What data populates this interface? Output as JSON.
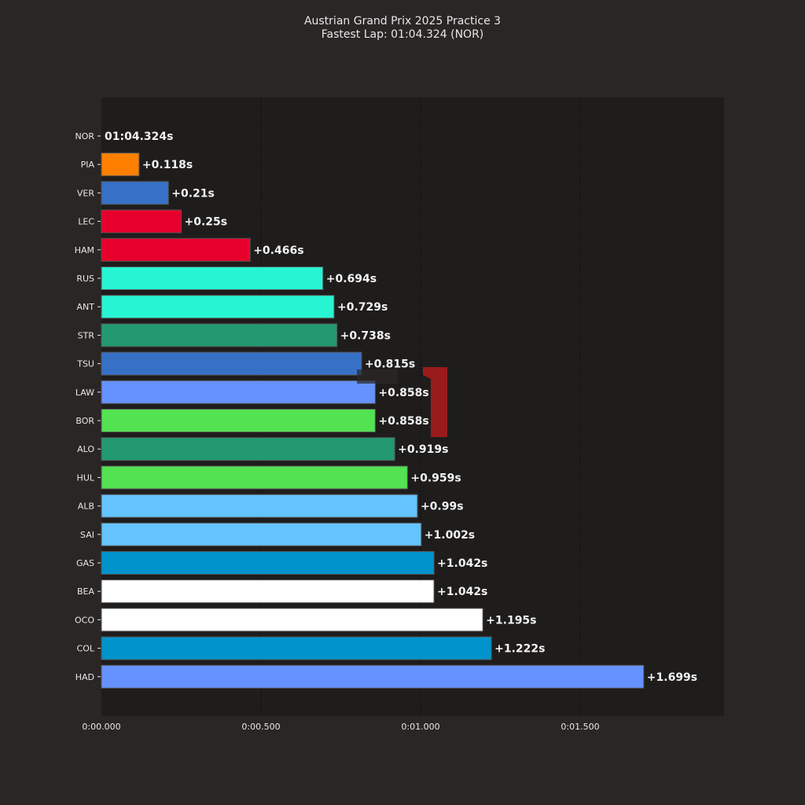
{
  "chart_data": {
    "type": "bar",
    "orientation": "horizontal",
    "title": "Austrian Grand Prix 2025 Practice 3",
    "subtitle": "Fastest Lap: 01:04.324 (NOR)",
    "xlabel": "",
    "ylabel": "",
    "xlim": [
      0,
      1.95
    ],
    "x_ticks": [
      {
        "value": 0,
        "label": "0:00.000"
      },
      {
        "value": 0.5,
        "label": "0:00.500"
      },
      {
        "value": 1.0,
        "label": "0:01.000"
      },
      {
        "value": 1.5,
        "label": "0:01.500"
      }
    ],
    "grid": true,
    "legend": "none",
    "background": "#292625",
    "plot_background": "#1f1d1c",
    "categories": [
      "NOR",
      "PIA",
      "VER",
      "LEC",
      "HAM",
      "RUS",
      "ANT",
      "STR",
      "TSU",
      "LAW",
      "BOR",
      "ALO",
      "HUL",
      "ALB",
      "SAI",
      "GAS",
      "BEA",
      "OCO",
      "COL",
      "HAD"
    ],
    "values": [
      0,
      0.118,
      0.21,
      0.25,
      0.466,
      0.694,
      0.729,
      0.738,
      0.815,
      0.858,
      0.858,
      0.919,
      0.959,
      0.99,
      1.002,
      1.042,
      1.042,
      1.195,
      1.222,
      1.699
    ],
    "labels": [
      "01:04.324s",
      "+0.118s",
      "+0.21s",
      "+0.25s",
      "+0.466s",
      "+0.694s",
      "+0.729s",
      "+0.738s",
      "+0.815s",
      "+0.858s",
      "+0.858s",
      "+0.919s",
      "+0.959s",
      "+0.99s",
      "+1.002s",
      "+1.042s",
      "+1.042s",
      "+1.195s",
      "+1.222s",
      "+1.699s"
    ],
    "colors": [
      "#ff8000",
      "#ff8000",
      "#3671c6",
      "#e8002d",
      "#e8002d",
      "#27f4d2",
      "#27f4d2",
      "#229971",
      "#3671c6",
      "#6692ff",
      "#52e252",
      "#229971",
      "#52e252",
      "#64c4ff",
      "#64c4ff",
      "#0093cc",
      "#ffffff",
      "#ffffff",
      "#0093cc",
      "#6692ff"
    ]
  }
}
